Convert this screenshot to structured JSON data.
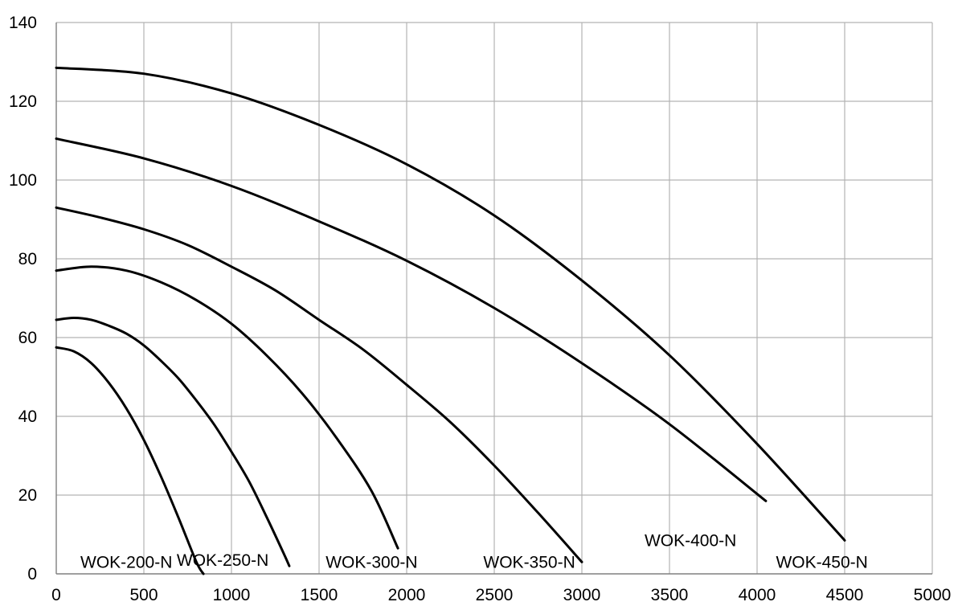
{
  "chart_data": {
    "type": "line",
    "title": "",
    "xlabel": "",
    "ylabel": "",
    "xlim": [
      0,
      5000
    ],
    "ylim": [
      0,
      140
    ],
    "x_ticks": [
      0,
      500,
      1000,
      1500,
      2000,
      2500,
      3000,
      3500,
      4000,
      4500,
      5000
    ],
    "y_ticks": [
      0,
      20,
      40,
      60,
      80,
      100,
      120,
      140
    ],
    "grid": true,
    "legend": "none",
    "line_color": "#000000",
    "grid_color": "#b3b3b3",
    "series": [
      {
        "name": "WOK-200-N",
        "x": [
          0,
          100,
          200,
          300,
          400,
          500,
          600,
          700,
          800,
          840
        ],
        "y": [
          57.5,
          56.5,
          53.5,
          48.5,
          42,
          34,
          24.5,
          14,
          3,
          0
        ]
      },
      {
        "name": "WOK-250-N",
        "x": [
          0,
          100,
          200,
          300,
          400,
          500,
          600,
          700,
          800,
          900,
          1000,
          1100,
          1200,
          1300,
          1330
        ],
        "y": [
          64.5,
          65,
          64.5,
          63,
          61,
          58,
          54,
          49.5,
          44,
          38,
          31,
          23.5,
          14.5,
          5,
          2
        ]
      },
      {
        "name": "WOK-300-N",
        "x": [
          0,
          200,
          400,
          600,
          800,
          1000,
          1200,
          1400,
          1600,
          1800,
          1950
        ],
        "y": [
          77,
          78,
          77,
          74,
          69.5,
          63.5,
          55.5,
          46,
          34.5,
          21,
          6.5
        ]
      },
      {
        "name": "WOK-350-N",
        "x": [
          0,
          250,
          500,
          750,
          1000,
          1250,
          1500,
          1750,
          2000,
          2250,
          2500,
          2750,
          3000
        ],
        "y": [
          93,
          90.5,
          87.5,
          83.5,
          78,
          72,
          64.5,
          57,
          48,
          38.5,
          27.5,
          15.5,
          3
        ]
      },
      {
        "name": "WOK-400-N",
        "x": [
          0,
          500,
          1000,
          1500,
          2000,
          2500,
          3000,
          3500,
          4050
        ],
        "y": [
          110.5,
          105.5,
          98.5,
          89.5,
          79.5,
          67.5,
          53.5,
          38,
          18.5
        ]
      },
      {
        "name": "WOK-450-N",
        "x": [
          0,
          500,
          1000,
          1500,
          2000,
          2500,
          3000,
          3500,
          4000,
          4500
        ],
        "y": [
          128.5,
          127,
          122,
          114,
          104,
          91,
          74.5,
          55.5,
          33,
          8.5
        ]
      }
    ],
    "series_labels": [
      {
        "text": "WOK-200-N",
        "x": 400,
        "y": 1.5
      },
      {
        "text": "WOK-250-N",
        "x": 950,
        "y": 2
      },
      {
        "text": "WOK-300-N",
        "x": 1800,
        "y": 1.5
      },
      {
        "text": "WOK-350-N",
        "x": 2700,
        "y": 1.5
      },
      {
        "text": "WOK-400-N",
        "x": 3620,
        "y": 7
      },
      {
        "text": "WOK-450-N",
        "x": 4370,
        "y": 1.5
      }
    ]
  }
}
